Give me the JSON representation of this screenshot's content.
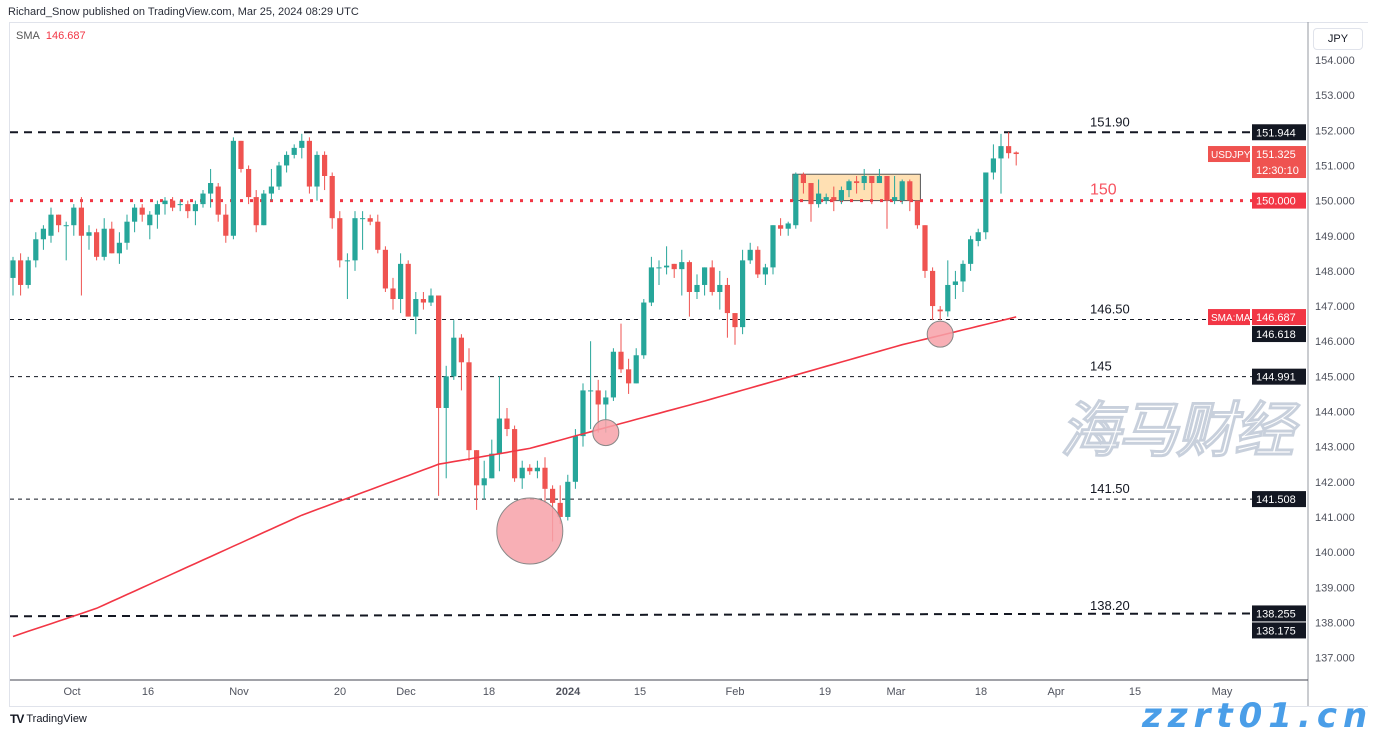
{
  "header": {
    "published": "Richard_Snow published on TradingView.com, Mar 25, 2024 08:29 UTC"
  },
  "legend": {
    "indicator": "SMA",
    "value": "146.687"
  },
  "currency_button": "JPY",
  "footer": {
    "logo_text": "TradingView"
  },
  "watermark": {
    "cn": "海马财经",
    "site": "zzrt01.cn"
  },
  "colors": {
    "up": "#26a69a",
    "down": "#ef5350",
    "sma": "#f23645",
    "level150": "#f23645",
    "zone": "#ffd8a0",
    "circle": "#f7a1a8"
  },
  "chart_data": {
    "type": "candlestick",
    "symbol": "USDJPY",
    "ylim": [
      136.6,
      154.9
    ],
    "y_ticks": [
      "137.000",
      "138.000",
      "139.000",
      "140.000",
      "141.000",
      "142.000",
      "143.000",
      "144.000",
      "145.000",
      "146.000",
      "147.000",
      "148.000",
      "149.000",
      "150.000",
      "151.000",
      "152.000",
      "153.000",
      "154.000"
    ],
    "x_ticks": [
      "Oct",
      "16",
      "Nov",
      "20",
      "Dec",
      "18",
      "2024",
      "15",
      "Feb",
      "19",
      "Mar",
      "18",
      "Apr",
      "15",
      "May"
    ],
    "ohlc": [
      [
        147.8,
        148.4,
        147.3,
        148.3
      ],
      [
        148.3,
        148.5,
        147.3,
        147.6
      ],
      [
        147.6,
        148.4,
        147.5,
        148.3
      ],
      [
        148.3,
        149.1,
        148.1,
        148.9
      ],
      [
        148.9,
        149.3,
        148.6,
        149.2
      ],
      [
        149.0,
        149.8,
        148.8,
        149.6
      ],
      [
        149.6,
        149.6,
        149.1,
        149.3
      ],
      [
        149.3,
        149.4,
        148.3,
        149.3
      ],
      [
        149.3,
        149.9,
        149.0,
        149.8
      ],
      [
        149.8,
        150.1,
        147.3,
        149.0
      ],
      [
        149.0,
        149.3,
        148.6,
        149.1
      ],
      [
        149.1,
        149.2,
        148.3,
        148.4
      ],
      [
        148.4,
        149.5,
        148.3,
        149.2
      ],
      [
        149.2,
        149.4,
        148.5,
        148.5
      ],
      [
        148.5,
        149.1,
        148.2,
        148.8
      ],
      [
        148.8,
        149.6,
        148.6,
        149.4
      ],
      [
        149.4,
        149.9,
        149.1,
        149.8
      ],
      [
        149.8,
        149.9,
        149.4,
        149.6
      ],
      [
        149.3,
        149.7,
        148.9,
        149.6
      ],
      [
        149.6,
        150.0,
        149.2,
        149.9
      ],
      [
        149.9,
        150.1,
        149.6,
        150.0
      ],
      [
        150.0,
        150.1,
        149.7,
        149.8
      ],
      [
        149.9,
        150.0,
        149.7,
        149.9
      ],
      [
        149.9,
        150.0,
        149.5,
        149.7
      ],
      [
        149.7,
        150.0,
        149.3,
        149.9
      ],
      [
        149.9,
        150.3,
        149.8,
        150.2
      ],
      [
        150.2,
        150.9,
        149.8,
        150.5
      ],
      [
        150.4,
        150.5,
        149.4,
        149.6
      ],
      [
        149.6,
        149.9,
        148.8,
        149.0
      ],
      [
        149.0,
        151.8,
        148.9,
        151.7
      ],
      [
        151.7,
        151.7,
        150.8,
        150.9
      ],
      [
        150.9,
        151.0,
        149.9,
        150.1
      ],
      [
        150.1,
        150.3,
        149.1,
        149.3
      ],
      [
        149.3,
        150.3,
        149.3,
        150.2
      ],
      [
        150.2,
        150.9,
        150.0,
        150.4
      ],
      [
        150.4,
        151.1,
        150.3,
        151.0
      ],
      [
        151.0,
        151.4,
        150.8,
        151.3
      ],
      [
        151.3,
        151.6,
        151.2,
        151.5
      ],
      [
        151.5,
        151.9,
        151.2,
        151.7
      ],
      [
        151.7,
        151.8,
        150.2,
        150.4
      ],
      [
        150.4,
        151.4,
        150.0,
        151.3
      ],
      [
        151.3,
        151.4,
        150.3,
        150.7
      ],
      [
        150.7,
        150.8,
        149.2,
        149.5
      ],
      [
        149.5,
        149.7,
        148.1,
        148.3
      ],
      [
        148.3,
        148.5,
        147.2,
        148.3
      ],
      [
        148.3,
        149.7,
        148.0,
        149.5
      ],
      [
        149.5,
        149.7,
        148.6,
        149.5
      ],
      [
        149.5,
        149.6,
        149.3,
        149.4
      ],
      [
        149.4,
        149.6,
        148.5,
        148.6
      ],
      [
        148.6,
        148.7,
        147.4,
        147.5
      ],
      [
        147.5,
        147.8,
        146.9,
        147.2
      ],
      [
        147.2,
        148.5,
        146.8,
        148.2
      ],
      [
        148.2,
        148.3,
        146.7,
        146.7
      ],
      [
        146.7,
        147.4,
        146.2,
        147.2
      ],
      [
        147.2,
        147.4,
        146.9,
        147.1
      ],
      [
        147.1,
        147.5,
        147.0,
        147.3
      ],
      [
        147.3,
        147.3,
        141.6,
        144.1
      ],
      [
        144.1,
        145.3,
        142.1,
        145.0
      ],
      [
        145.0,
        146.6,
        144.9,
        146.1
      ],
      [
        146.1,
        146.2,
        144.6,
        145.4
      ],
      [
        145.4,
        145.8,
        142.6,
        142.9
      ],
      [
        142.9,
        142.9,
        141.2,
        141.9
      ],
      [
        141.9,
        142.6,
        141.5,
        142.1
      ],
      [
        142.1,
        143.2,
        142.1,
        142.8
      ],
      [
        142.8,
        145.0,
        142.3,
        143.8
      ],
      [
        143.8,
        144.1,
        143.3,
        143.5
      ],
      [
        143.5,
        143.6,
        142.0,
        142.1
      ],
      [
        142.1,
        142.6,
        141.8,
        142.4
      ],
      [
        142.4,
        142.5,
        142.2,
        142.3
      ],
      [
        142.3,
        142.6,
        142.1,
        142.4
      ],
      [
        142.4,
        142.7,
        141.4,
        141.8
      ],
      [
        141.8,
        141.9,
        140.3,
        141.4
      ],
      [
        141.4,
        141.9,
        140.8,
        141.0
      ],
      [
        141.0,
        142.2,
        140.9,
        142.0
      ],
      [
        142.0,
        143.5,
        141.8,
        143.3
      ],
      [
        143.3,
        144.8,
        143.0,
        144.6
      ],
      [
        144.6,
        146.0,
        143.5,
        144.6
      ],
      [
        144.6,
        144.9,
        143.4,
        144.2
      ],
      [
        144.2,
        144.6,
        143.4,
        144.4
      ],
      [
        144.4,
        145.8,
        144.3,
        145.7
      ],
      [
        145.7,
        146.5,
        145.1,
        145.2
      ],
      [
        145.2,
        145.5,
        144.5,
        144.8
      ],
      [
        144.8,
        145.8,
        144.8,
        145.6
      ],
      [
        145.6,
        147.2,
        145.5,
        147.1
      ],
      [
        147.1,
        148.4,
        147.0,
        148.1
      ],
      [
        148.1,
        148.3,
        147.6,
        148.1
      ],
      [
        148.1,
        148.7,
        147.9,
        148.15
      ],
      [
        148.2,
        148.2,
        147.8,
        148.05
      ],
      [
        148.05,
        148.6,
        147.3,
        148.25
      ],
      [
        148.25,
        148.3,
        146.7,
        147.4
      ],
      [
        147.4,
        147.9,
        147.2,
        147.6
      ],
      [
        147.6,
        148.1,
        147.3,
        148.1
      ],
      [
        148.1,
        148.3,
        147.3,
        147.4
      ],
      [
        147.4,
        148.0,
        146.9,
        147.6
      ],
      [
        147.6,
        147.8,
        146.1,
        146.8
      ],
      [
        146.8,
        146.8,
        145.9,
        146.4
      ],
      [
        146.4,
        148.6,
        146.2,
        148.3
      ],
      [
        148.3,
        148.8,
        148.2,
        148.6
      ],
      [
        148.6,
        148.7,
        147.8,
        147.9
      ],
      [
        147.9,
        148.2,
        147.6,
        148.1
      ],
      [
        148.1,
        149.3,
        147.9,
        149.3
      ],
      [
        149.3,
        149.5,
        149.0,
        149.2
      ],
      [
        149.2,
        149.4,
        149.0,
        149.35
      ],
      [
        149.3,
        150.8,
        149.2,
        150.75
      ],
      [
        150.75,
        150.8,
        150.2,
        150.5
      ],
      [
        150.5,
        150.5,
        149.4,
        149.9
      ],
      [
        149.9,
        150.6,
        149.8,
        150.2
      ],
      [
        150.0,
        150.2,
        149.9,
        150.1
      ],
      [
        150.1,
        150.4,
        149.7,
        150.0
      ],
      [
        150.0,
        150.4,
        149.9,
        150.3
      ],
      [
        150.3,
        150.6,
        150.1,
        150.55
      ],
      [
        150.55,
        150.7,
        150.2,
        150.5
      ],
      [
        150.5,
        150.9,
        150.3,
        150.7
      ],
      [
        150.7,
        150.7,
        149.9,
        150.5
      ],
      [
        150.5,
        150.9,
        150.5,
        150.7
      ],
      [
        150.7,
        150.7,
        149.2,
        150.0
      ],
      [
        150.0,
        150.7,
        149.9,
        150.1
      ],
      [
        150.0,
        150.6,
        149.9,
        150.55
      ],
      [
        150.55,
        150.6,
        149.7,
        150.0
      ],
      [
        150.0,
        150.0,
        149.2,
        149.3
      ],
      [
        149.3,
        149.3,
        147.8,
        148.0
      ],
      [
        148.0,
        148.1,
        146.6,
        147.0
      ],
      [
        146.9,
        147.0,
        146.6,
        146.85
      ],
      [
        146.85,
        148.3,
        146.7,
        147.6
      ],
      [
        147.6,
        148.0,
        147.2,
        147.7
      ],
      [
        147.7,
        148.3,
        147.4,
        148.2
      ],
      [
        148.2,
        149.0,
        148.0,
        148.9
      ],
      [
        148.85,
        149.2,
        148.7,
        149.1
      ],
      [
        149.1,
        150.8,
        148.9,
        150.8
      ],
      [
        150.8,
        151.6,
        150.6,
        151.2
      ],
      [
        151.2,
        151.9,
        150.2,
        151.55
      ],
      [
        151.55,
        151.95,
        151.2,
        151.35
      ],
      [
        151.37,
        151.4,
        151.0,
        151.325
      ]
    ],
    "sma": {
      "label": "SMA:MA",
      "value": "146.687",
      "knots": [
        [
          0,
          137.6
        ],
        [
          11,
          138.4
        ],
        [
          38,
          141.05
        ],
        [
          56,
          142.5
        ],
        [
          68,
          142.95
        ],
        [
          79,
          143.6
        ],
        [
          91,
          144.3
        ],
        [
          104,
          145.1
        ],
        [
          117,
          145.9
        ],
        [
          132,
          146.69
        ]
      ]
    },
    "levels": [
      {
        "label": "151.90",
        "price": 151.944,
        "box": "151.944",
        "style": "dash-bold",
        "color": "#131722"
      },
      {
        "label": "150",
        "price": 150.0,
        "box": "150.000",
        "style": "dotted-red",
        "color": "#f23645"
      },
      {
        "label": "146.50",
        "price": 146.618,
        "box": "146.618",
        "style": "dash-thin",
        "color": "#131722"
      },
      {
        "label": "145",
        "price": 144.991,
        "box": "144.991",
        "style": "dash-thin",
        "color": "#131722"
      },
      {
        "label": "141.50",
        "price": 141.508,
        "box": "141.508",
        "style": "dash-thin",
        "color": "#131722"
      },
      {
        "label": "138.20",
        "price": 138.175,
        "price_end": 138.255,
        "box": "138.255",
        "box2": "138.175",
        "style": "dash-bold",
        "color": "#131722"
      }
    ],
    "last_price": {
      "symbol": "USDJPY",
      "value": "151.325",
      "countdown": "12:30:10"
    },
    "zone": {
      "from_bar": 103,
      "to_bar": 119,
      "top": 150.75,
      "bottom": 150.0
    },
    "circles": [
      {
        "bar": 68,
        "price": 140.6,
        "size": "large"
      },
      {
        "bar": 78,
        "price": 143.4,
        "size": "small"
      },
      {
        "bar": 122,
        "price": 146.2,
        "size": "small"
      }
    ]
  }
}
